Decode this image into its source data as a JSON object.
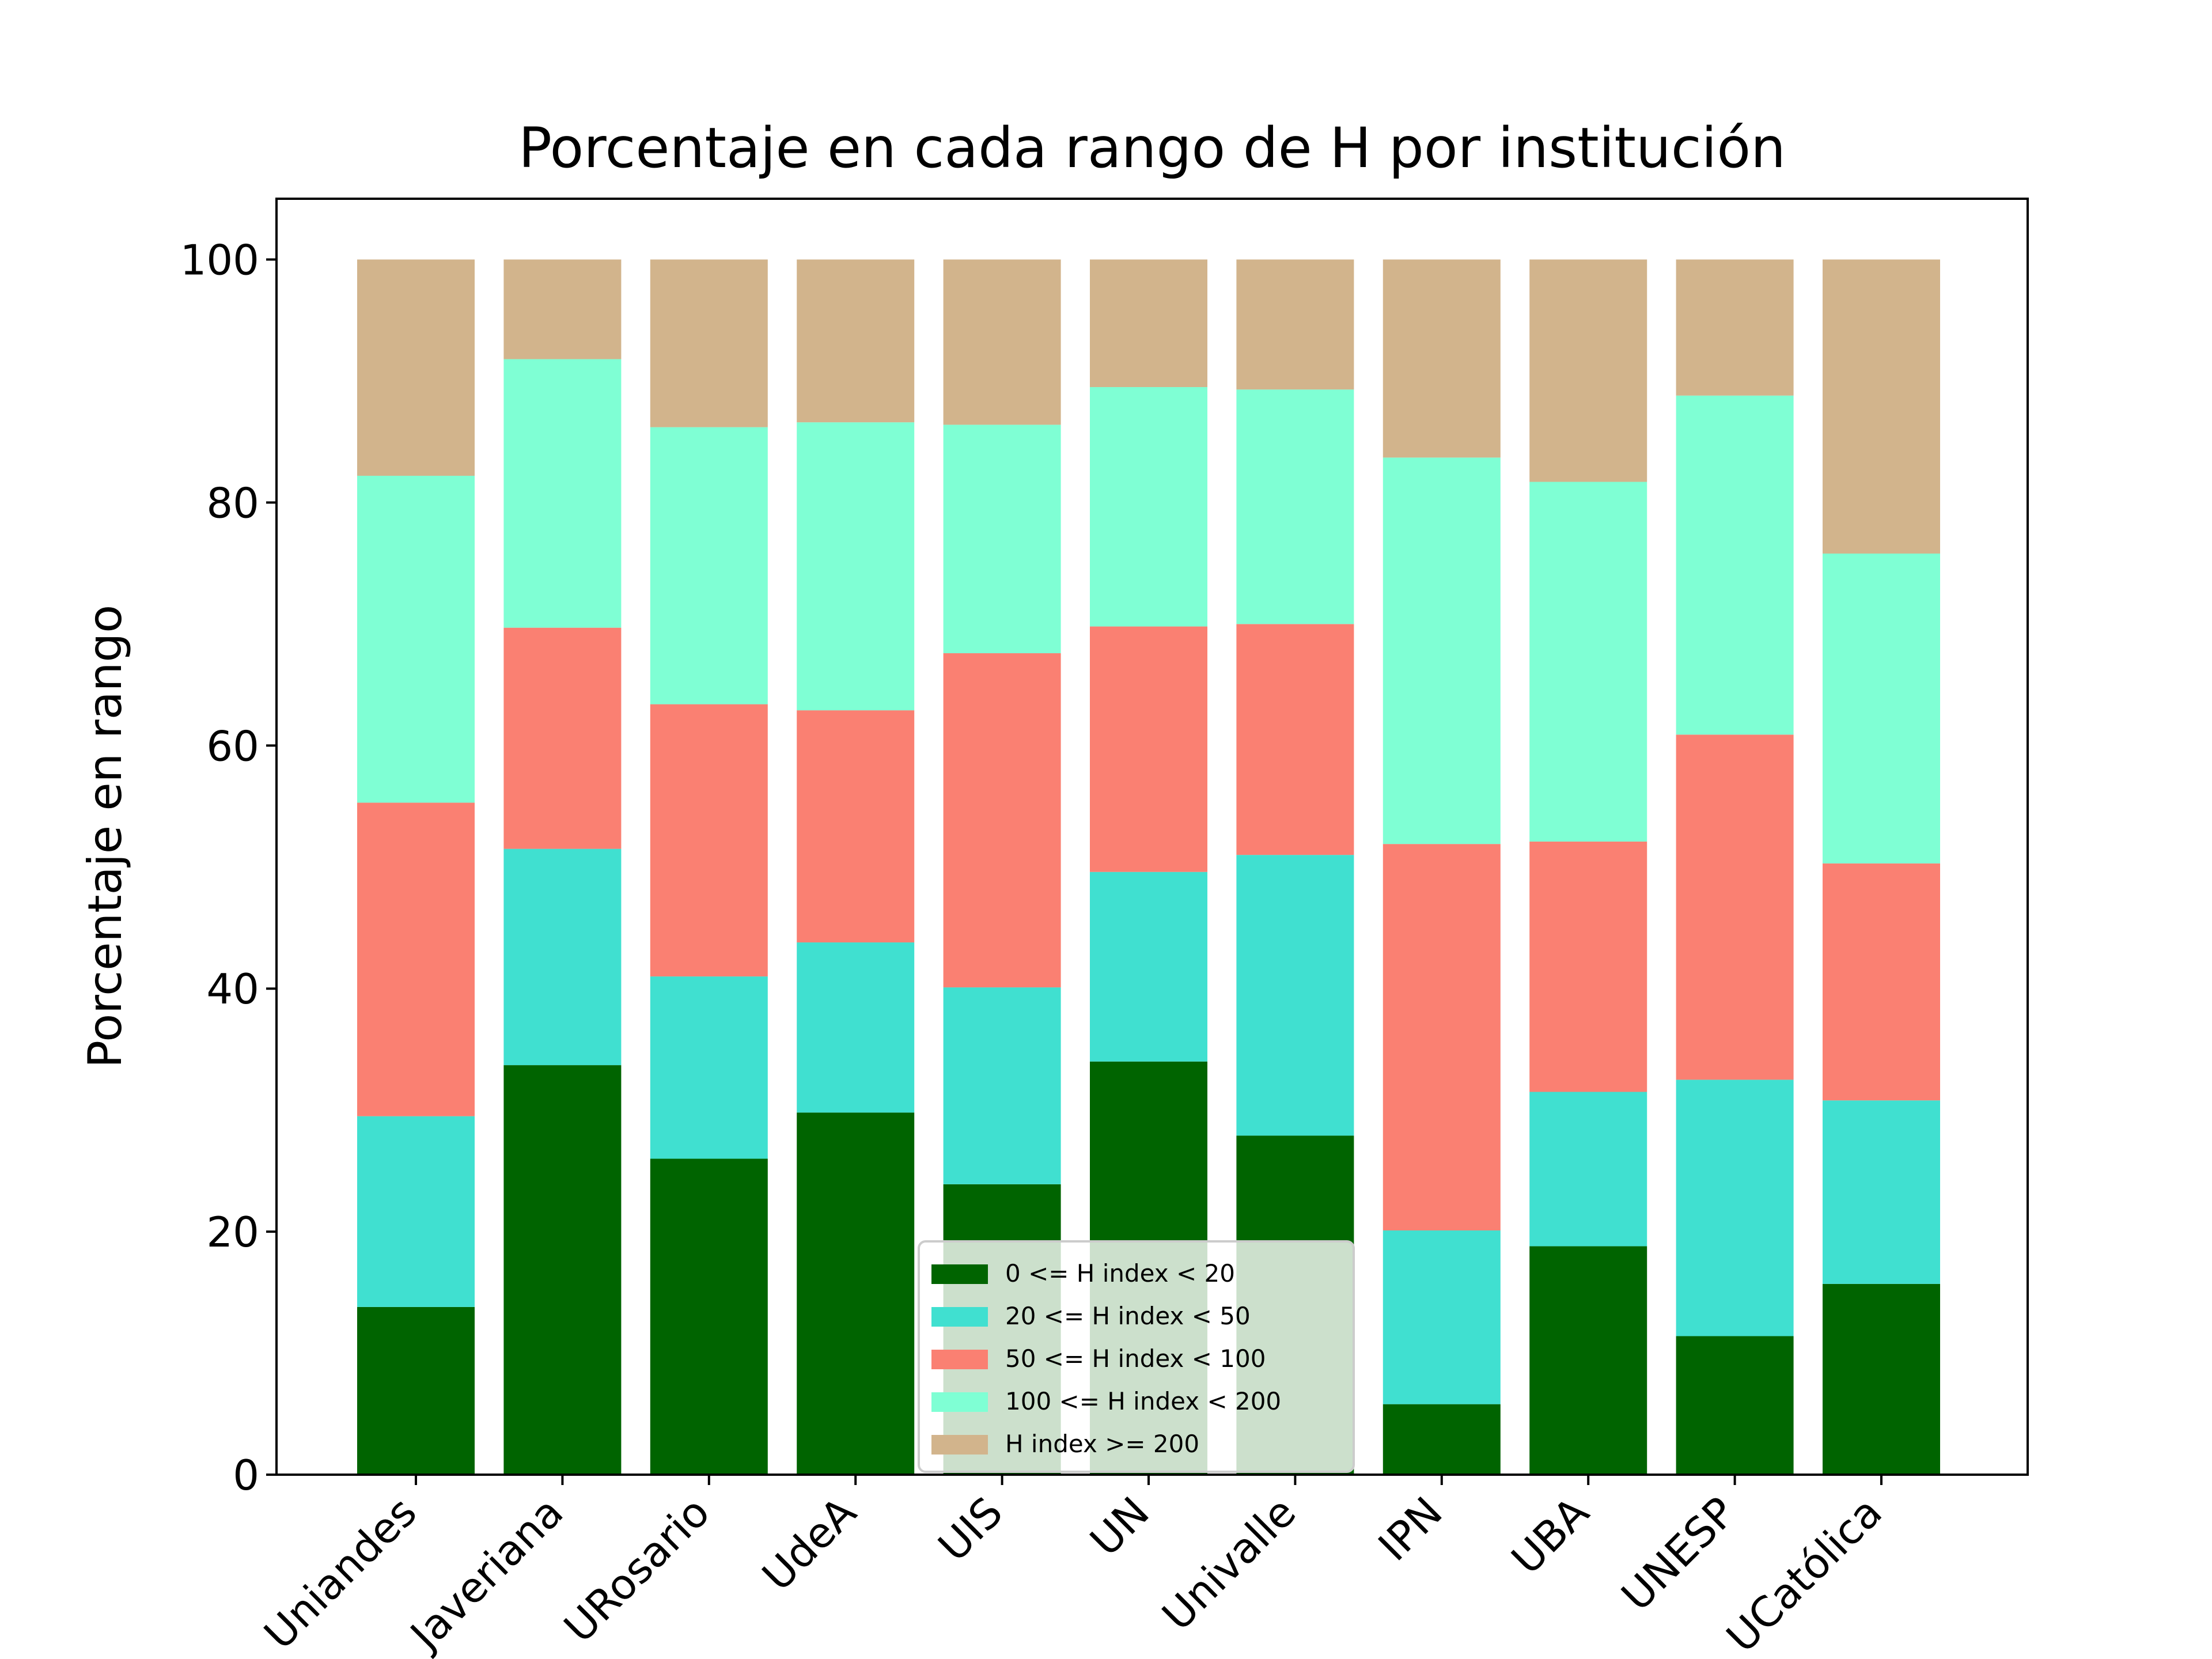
{
  "chart_data": {
    "type": "bar",
    "stacked": true,
    "title": "Porcentaje en cada rango de H por institución",
    "xlabel": "",
    "ylabel": "Porcentaje en rango",
    "ylim": [
      0,
      105
    ],
    "yticks": [
      0,
      20,
      40,
      60,
      80,
      100
    ],
    "grid": false,
    "legend_position": "bottom-center",
    "categories": [
      "Uniandes",
      "Javeriana",
      "URosario",
      "UdeA",
      "UIS",
      "UN",
      "Univalle",
      "IPN",
      "UBA",
      "UNESP",
      "UCatólica"
    ],
    "series": [
      {
        "name": "0 <= H index < 20",
        "color": "#006400",
        "values": [
          13.8,
          33.7,
          26.0,
          29.8,
          23.9,
          34.0,
          27.9,
          5.8,
          18.8,
          11.4,
          15.7
        ]
      },
      {
        "name": "20  <= H index < 50",
        "color": "#40E0D0",
        "values": [
          15.7,
          17.8,
          15.0,
          14.0,
          16.2,
          15.6,
          23.1,
          14.3,
          12.7,
          21.1,
          15.1
        ]
      },
      {
        "name": "50 <= H index < 100",
        "color": "#FA8072",
        "values": [
          25.8,
          18.2,
          22.4,
          19.1,
          27.5,
          20.2,
          19.0,
          31.8,
          20.6,
          28.4,
          19.5
        ]
      },
      {
        "name": "100  <= H index < 200",
        "color": "#7FFFD4",
        "values": [
          26.9,
          22.1,
          22.8,
          23.7,
          18.8,
          19.7,
          19.3,
          31.8,
          29.6,
          27.9,
          25.5
        ]
      },
      {
        "name": "H index >= 200",
        "color": "#D2B48C",
        "values": [
          17.8,
          8.2,
          13.8,
          13.4,
          13.6,
          10.5,
          10.7,
          16.3,
          18.3,
          11.2,
          24.2
        ]
      }
    ]
  }
}
